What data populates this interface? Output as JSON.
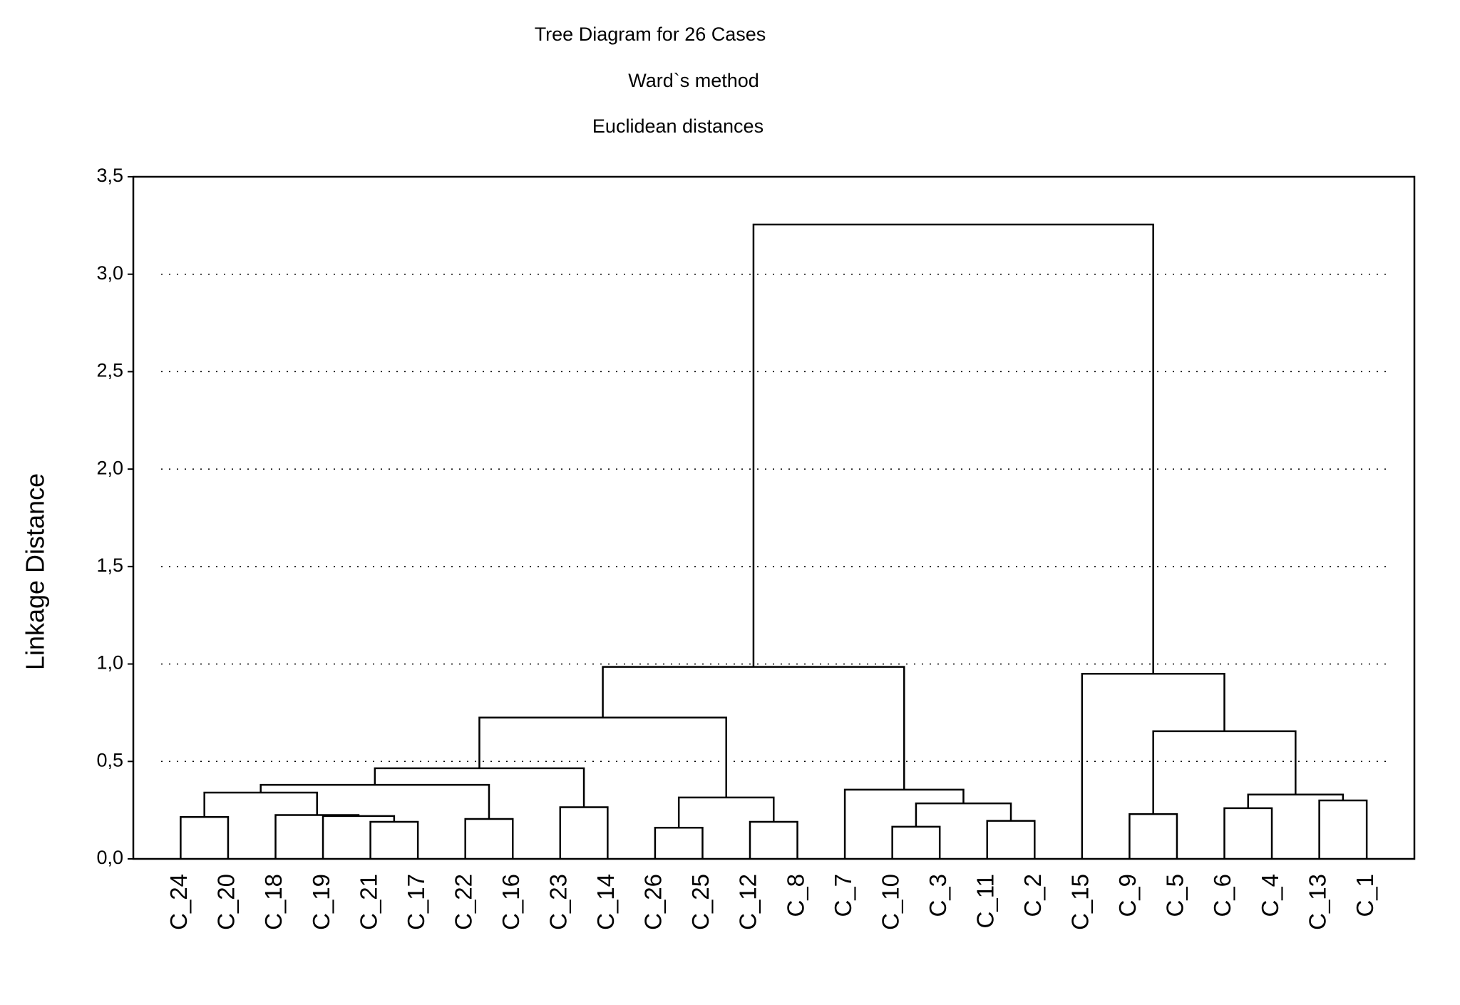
{
  "chart_data": {
    "type": "dendrogram",
    "title": "Tree Diagram for 26 Cases",
    "subtitles": [
      "Ward`s method",
      "Euclidean distances"
    ],
    "y_label": "Linkage Distance",
    "ylim": [
      0,
      3.5
    ],
    "yticks": [
      {
        "value": 0,
        "label": "0,0"
      },
      {
        "value": 0.5,
        "label": "0,5"
      },
      {
        "value": 1,
        "label": "1,0"
      },
      {
        "value": 1.5,
        "label": "1,5"
      },
      {
        "value": 2,
        "label": "2,0"
      },
      {
        "value": 2.5,
        "label": "2,5"
      },
      {
        "value": 3,
        "label": "3,0"
      },
      {
        "value": 3.5,
        "label": "3,5"
      }
    ],
    "grid": true,
    "color": "#000000",
    "tree": {
      "height": 3.255,
      "children": [
        {
          "height": 0.985,
          "children": [
            {
              "height": 0.725,
              "children": [
                {
                  "height": 0.465,
                  "children": [
                    {
                      "height": 0.38,
                      "children": [
                        {
                          "height": 0.34,
                          "children": [
                            {
                              "height": 0.215,
                              "children": [
                                {
                                  "label": "C_24"
                                },
                                {
                                  "label": "C_20"
                                }
                              ]
                            },
                            {
                              "height": 0.225,
                              "children": [
                                {
                                  "label": "C_18"
                                },
                                {
                                  "height": 0.22,
                                  "children": [
                                    {
                                      "label": "C_19"
                                    },
                                    {
                                      "height": 0.19,
                                      "children": [
                                        {
                                          "label": "C_21"
                                        },
                                        {
                                          "label": "C_17"
                                        }
                                      ]
                                    }
                                  ]
                                }
                              ]
                            }
                          ]
                        },
                        {
                          "height": 0.205,
                          "children": [
                            {
                              "label": "C_22"
                            },
                            {
                              "label": "C_16"
                            }
                          ]
                        }
                      ]
                    },
                    {
                      "height": 0.265,
                      "children": [
                        {
                          "label": "C_23"
                        },
                        {
                          "label": "C_14"
                        }
                      ]
                    }
                  ]
                },
                {
                  "height": 0.315,
                  "children": [
                    {
                      "height": 0.16,
                      "children": [
                        {
                          "label": "C_26"
                        },
                        {
                          "label": "C_25"
                        }
                      ]
                    },
                    {
                      "height": 0.19,
                      "children": [
                        {
                          "label": "C_12"
                        },
                        {
                          "label": "C_8"
                        }
                      ]
                    }
                  ]
                }
              ]
            },
            {
              "height": 0.355,
              "children": [
                {
                  "label": "C_7"
                },
                {
                  "height": 0.285,
                  "children": [
                    {
                      "height": 0.165,
                      "children": [
                        {
                          "label": "C_10"
                        },
                        {
                          "label": "C_3"
                        }
                      ]
                    },
                    {
                      "height": 0.195,
                      "children": [
                        {
                          "label": "C_11"
                        },
                        {
                          "label": "C_2"
                        }
                      ]
                    }
                  ]
                }
              ]
            }
          ]
        },
        {
          "height": 0.95,
          "children": [
            {
              "label": "C_15"
            },
            {
              "height": 0.655,
              "children": [
                {
                  "height": 0.23,
                  "children": [
                    {
                      "label": "C_9"
                    },
                    {
                      "label": "C_5"
                    }
                  ]
                },
                {
                  "height": 0.33,
                  "children": [
                    {
                      "height": 0.26,
                      "children": [
                        {
                          "label": "C_6"
                        },
                        {
                          "label": "C_4"
                        }
                      ]
                    },
                    {
                      "height": 0.3,
                      "children": [
                        {
                          "label": "C_13"
                        },
                        {
                          "label": "C_1"
                        }
                      ]
                    }
                  ]
                }
              ]
            }
          ]
        }
      ]
    }
  }
}
